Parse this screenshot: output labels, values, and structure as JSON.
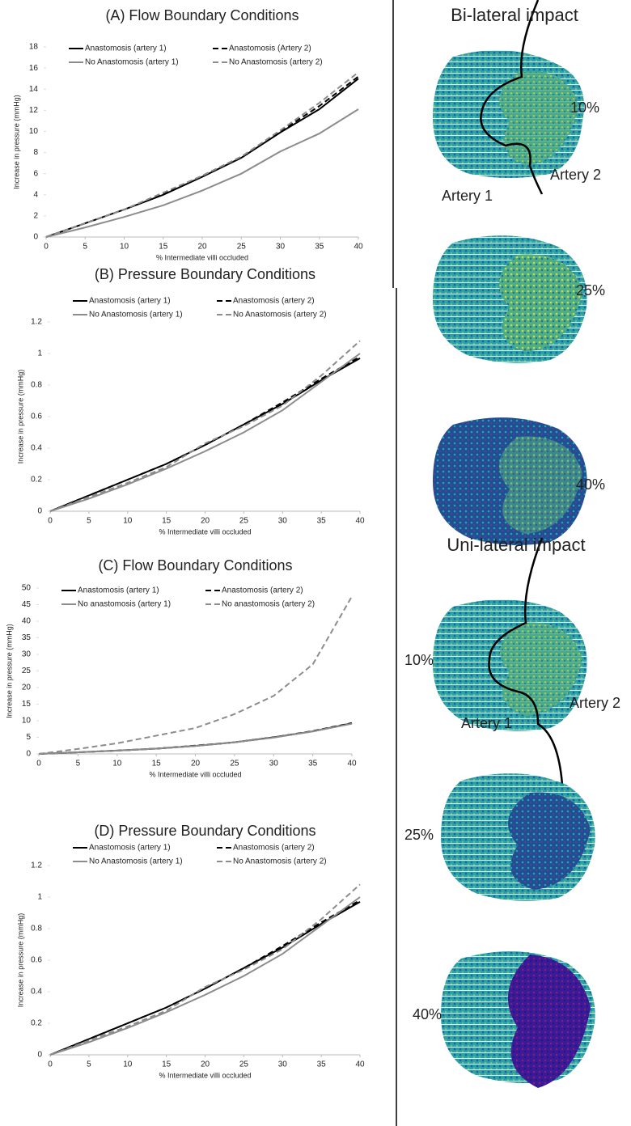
{
  "chart_data": [
    {
      "type": "line",
      "title": "(A) Flow Boundary Conditions",
      "x_label": "% Intermediate villi occluded",
      "y_label": "Increase in pressure (mmHg)",
      "x": [
        0,
        5,
        10,
        15,
        20,
        25,
        30,
        35,
        40
      ],
      "xlim": [
        0,
        40
      ],
      "xticks": [
        0,
        5,
        10,
        15,
        20,
        25,
        30,
        35,
        40
      ],
      "ylim": [
        0,
        18
      ],
      "yticks": [
        0,
        2,
        4,
        6,
        8,
        10,
        12,
        14,
        16,
        18
      ],
      "series": [
        {
          "name": "Anastomosis (artery 1)",
          "color": "#000000",
          "line_style": "solid",
          "values": [
            0,
            1.3,
            2.6,
            4.0,
            5.7,
            7.5,
            9.9,
            12.1,
            15.0
          ]
        },
        {
          "name": "Anastomosis (Artery 2)",
          "color": "#000000",
          "line_style": "dashed",
          "values": [
            0,
            1.3,
            2.6,
            4.1,
            5.8,
            7.6,
            10.0,
            12.4,
            15.2
          ]
        },
        {
          "name": "No Anastomosis (artery 1)",
          "color": "#8c8c8c",
          "line_style": "solid",
          "values": [
            0,
            0.9,
            1.9,
            3.0,
            4.4,
            6.0,
            8.1,
            9.8,
            12.1
          ]
        },
        {
          "name": "No Anastomosis (artery 2)",
          "color": "#8c8c8c",
          "line_style": "dashed",
          "values": [
            0,
            1.3,
            2.6,
            4.2,
            5.8,
            7.6,
            10.1,
            12.7,
            15.6
          ]
        }
      ]
    },
    {
      "type": "line",
      "title": "(B) Pressure Boundary Conditions",
      "x_label": "% Intermediate villi occluded",
      "y_label": "Increase in pressure (mmHg)",
      "x": [
        0,
        5,
        10,
        15,
        20,
        25,
        30,
        35,
        40
      ],
      "xlim": [
        0,
        40
      ],
      "xticks": [
        0,
        5,
        10,
        15,
        20,
        25,
        30,
        35,
        40
      ],
      "ylim": [
        0,
        1.2
      ],
      "yticks": [
        0,
        0.2,
        0.4,
        0.6,
        0.8,
        1,
        1.2
      ],
      "series": [
        {
          "name": "Anastomosis (artery 1)",
          "color": "#000000",
          "line_style": "solid",
          "values": [
            0,
            0.1,
            0.2,
            0.3,
            0.42,
            0.55,
            0.68,
            0.83,
            0.97
          ]
        },
        {
          "name": "Anastomosis (artery 2)",
          "color": "#000000",
          "line_style": "dashed",
          "values": [
            0,
            0.1,
            0.2,
            0.3,
            0.42,
            0.55,
            0.69,
            0.84,
            0.98
          ]
        },
        {
          "name": "No Anastomosis (artery 1)",
          "color": "#8c8c8c",
          "line_style": "solid",
          "values": [
            0,
            0.08,
            0.17,
            0.27,
            0.38,
            0.5,
            0.64,
            0.82,
            1.0
          ]
        },
        {
          "name": "No Anastomosis (artery 2)",
          "color": "#8c8c8c",
          "line_style": "dashed",
          "values": [
            0,
            0.09,
            0.18,
            0.28,
            0.43,
            0.54,
            0.67,
            0.86,
            1.08
          ]
        }
      ]
    },
    {
      "type": "line",
      "title": "(C) Flow Boundary Conditions",
      "x_label": "% Intermediate villi occluded",
      "y_label": "Increase in  pressure (mmHg)",
      "x": [
        0,
        5,
        10,
        15,
        20,
        25,
        30,
        35,
        40
      ],
      "xlim": [
        0,
        40
      ],
      "xticks": [
        0,
        5,
        10,
        15,
        20,
        25,
        30,
        35,
        40
      ],
      "ylim": [
        0,
        50
      ],
      "yticks": [
        0,
        5,
        10,
        15,
        20,
        25,
        30,
        35,
        40,
        45,
        50
      ],
      "series": [
        {
          "name": "Anastomosis (artery 1)",
          "color": "#000000",
          "line_style": "solid",
          "values": [
            0,
            0.5,
            1.0,
            1.6,
            2.4,
            3.5,
            5.0,
            6.8,
            9.2
          ]
        },
        {
          "name": "Anastomosis (artery 2)",
          "color": "#000000",
          "line_style": "dashed",
          "values": [
            0,
            0.5,
            1.0,
            1.6,
            2.5,
            3.5,
            5.0,
            6.9,
            9.3
          ]
        },
        {
          "name": "No anastomosis (artery 1)",
          "color": "#8c8c8c",
          "line_style": "solid",
          "values": [
            0,
            0.5,
            1.0,
            1.6,
            2.4,
            3.5,
            4.9,
            6.8,
            9.1
          ]
        },
        {
          "name": "No anastomosis (artery 2)",
          "color": "#8c8c8c",
          "line_style": "dashed",
          "values": [
            0,
            1.5,
            3.2,
            5.5,
            7.8,
            12,
            17.5,
            27,
            47.5
          ]
        }
      ]
    },
    {
      "type": "line",
      "title": "(D) Pressure Boundary Conditions",
      "x_label": "% Intermediate villi occluded",
      "y_label": "Increase in pressure (mmHg)",
      "x": [
        0,
        5,
        10,
        15,
        20,
        25,
        30,
        35,
        40
      ],
      "xlim": [
        0,
        40
      ],
      "xticks": [
        0,
        5,
        10,
        15,
        20,
        25,
        30,
        35,
        40
      ],
      "ylim": [
        0,
        1.2
      ],
      "yticks": [
        0,
        0.2,
        0.4,
        0.6,
        0.8,
        1,
        1.2
      ],
      "series": [
        {
          "name": "Anastomosis (artery 1)",
          "color": "#000000",
          "line_style": "solid",
          "values": [
            0,
            0.1,
            0.2,
            0.3,
            0.42,
            0.55,
            0.68,
            0.83,
            0.97
          ]
        },
        {
          "name": "Anastomosis (artery 2)",
          "color": "#000000",
          "line_style": "dashed",
          "values": [
            0,
            0.1,
            0.2,
            0.3,
            0.42,
            0.55,
            0.69,
            0.84,
            0.98
          ]
        },
        {
          "name": "No Anastomosis (artery 1)",
          "color": "#8c8c8c",
          "line_style": "solid",
          "values": [
            0,
            0.08,
            0.17,
            0.27,
            0.38,
            0.5,
            0.64,
            0.82,
            1.0
          ]
        },
        {
          "name": "No Anastomosis (artery 2)",
          "color": "#8c8c8c",
          "line_style": "dashed",
          "values": [
            0,
            0.09,
            0.18,
            0.28,
            0.43,
            0.54,
            0.67,
            0.86,
            1.08
          ]
        }
      ]
    }
  ],
  "bilateral": {
    "title": "Bi-lateral impact",
    "percent_labels": [
      "10%",
      "25%",
      "40%"
    ],
    "artery_labels": [
      "Artery 1",
      "Artery 2"
    ]
  },
  "unilateral": {
    "title": "Uni-lateral impact",
    "percent_labels": [
      "10%",
      "25%",
      "40%"
    ],
    "artery_labels": [
      "Artery 1",
      "Artery 2"
    ]
  }
}
